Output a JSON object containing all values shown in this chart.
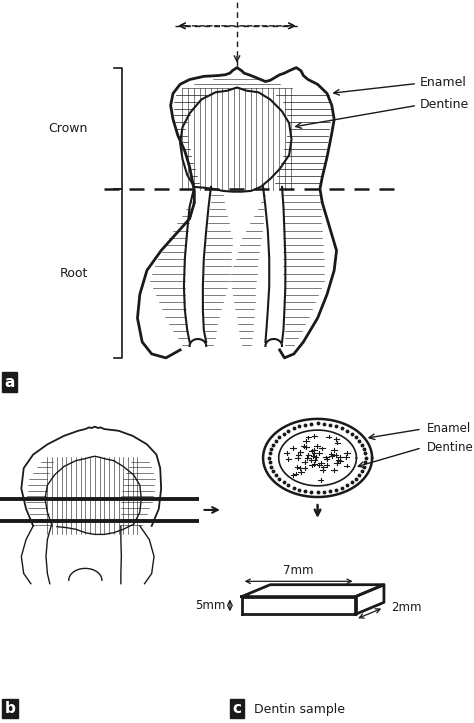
{
  "bg_color": "#ffffff",
  "line_color": "#1a1a1a",
  "label_a": "a",
  "label_b": "b",
  "label_c": "c",
  "label_crown": "Crown",
  "label_root": "Root",
  "label_enamel": "Enamel",
  "label_dentine": "Dentine",
  "label_dentin_sample": "Dentin sample",
  "dim_7mm": "7mm",
  "dim_5mm": "5mm",
  "dim_2mm": "2mm"
}
